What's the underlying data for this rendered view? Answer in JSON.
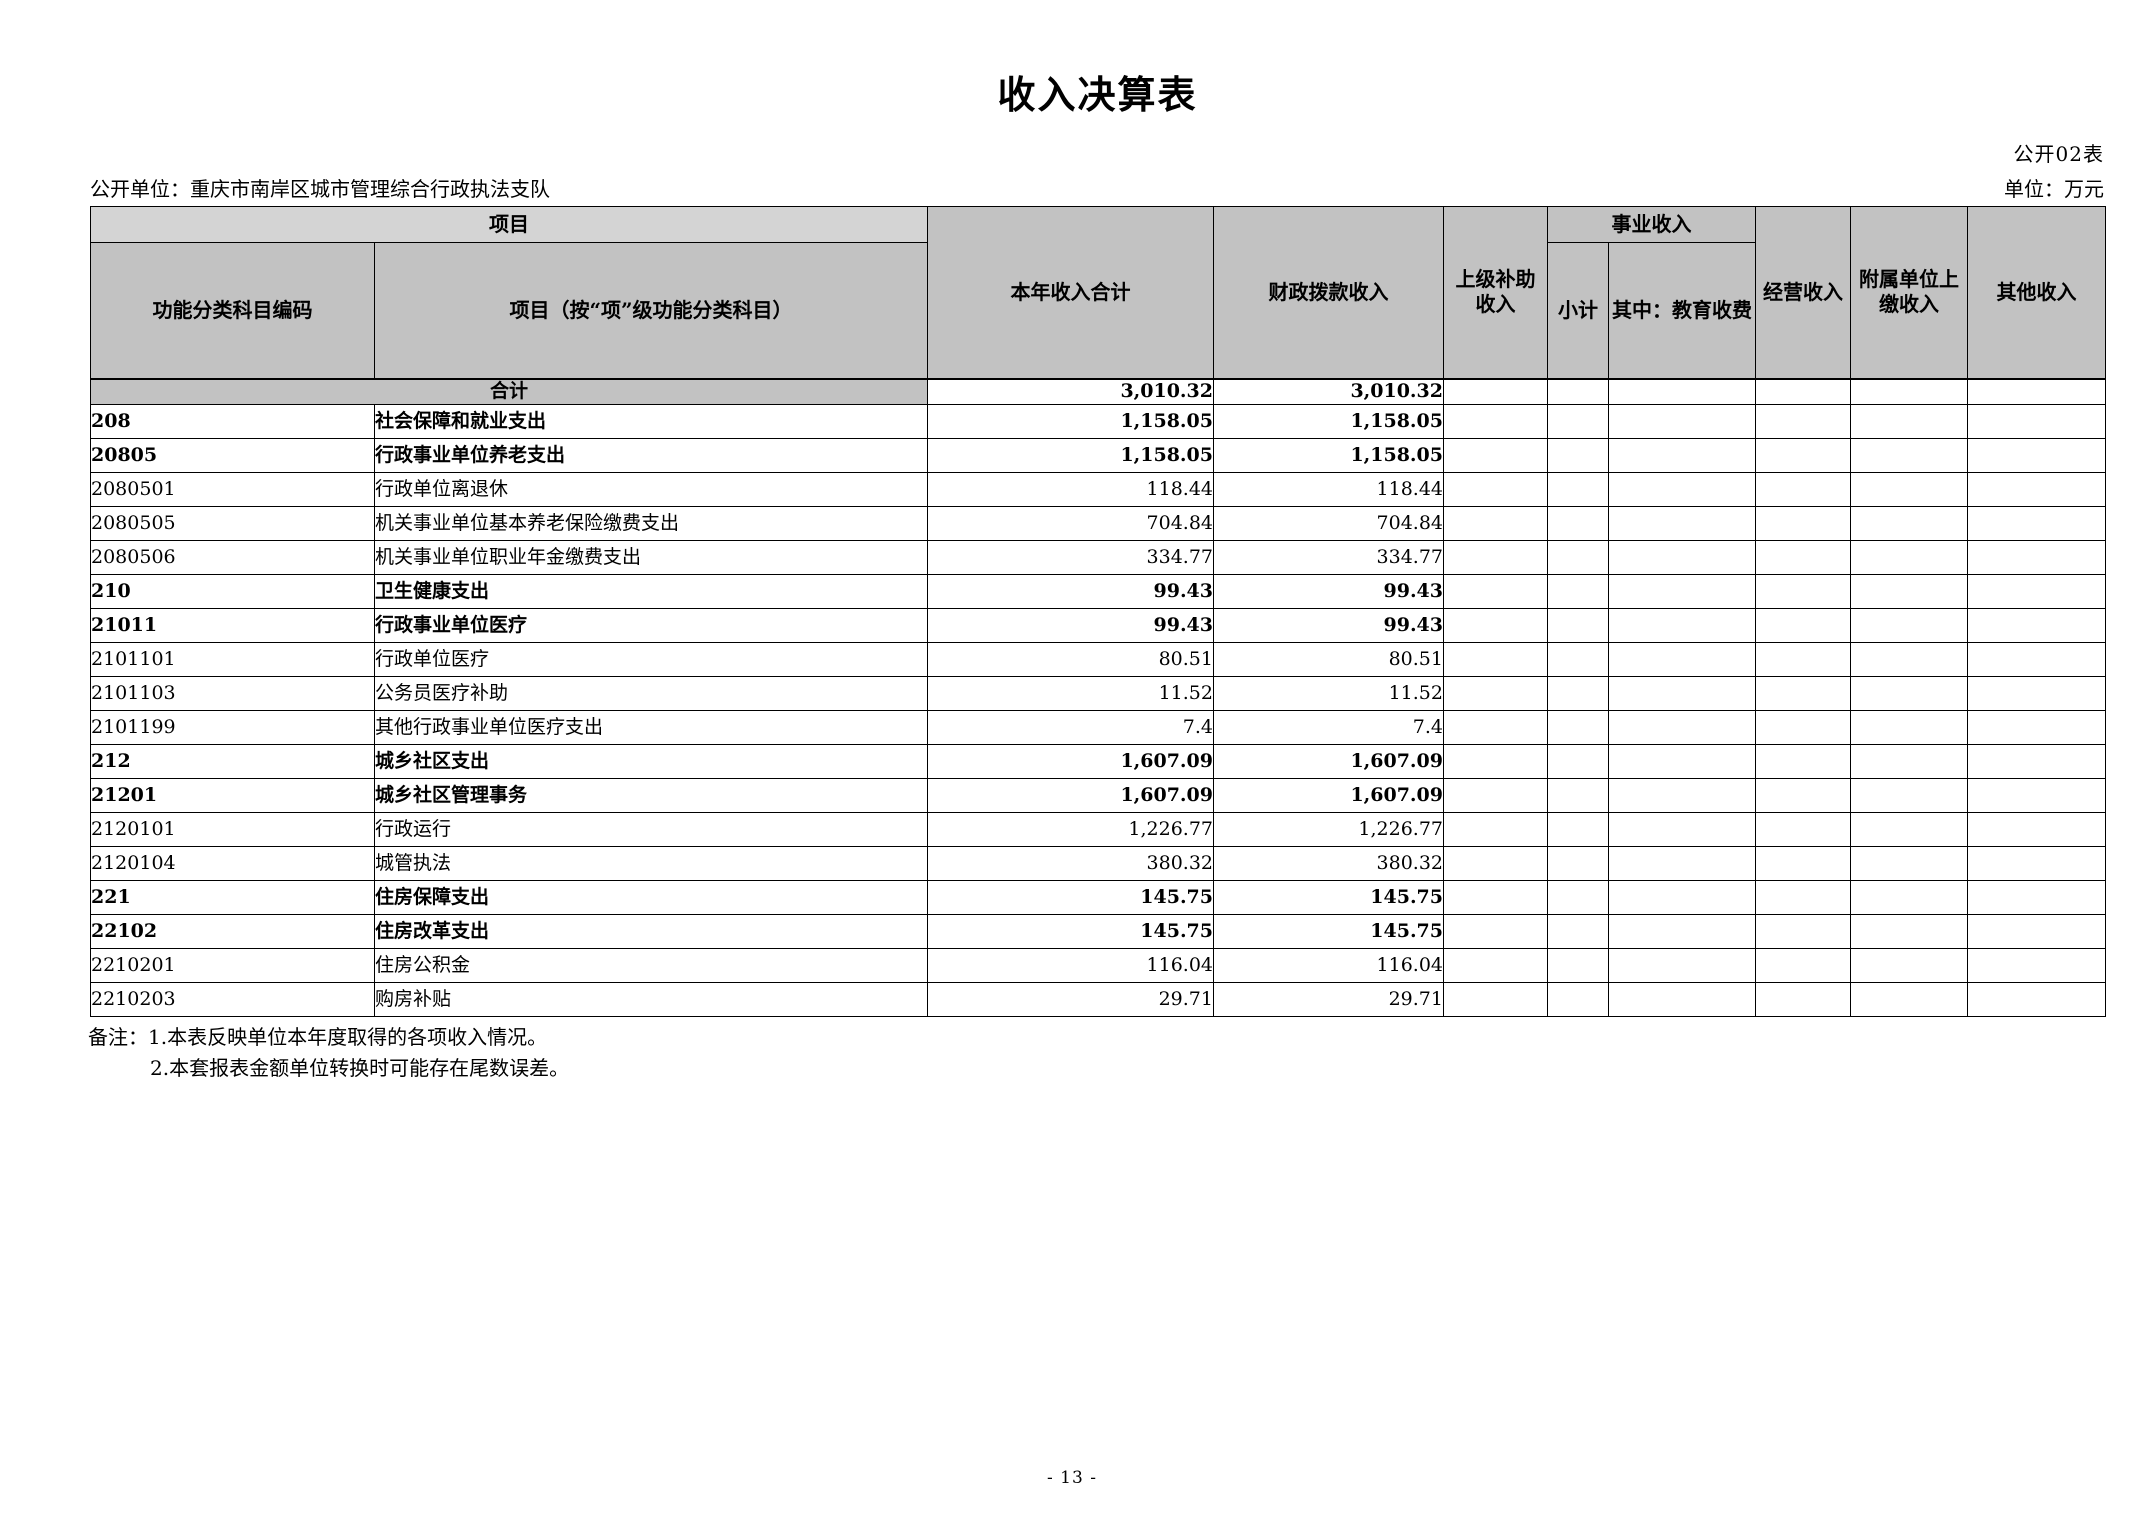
{
  "page": {
    "title": "收入决算表",
    "table_code": "公开02表",
    "org_label": "公开单位：重庆市南岸区城市管理综合行政执法支队",
    "unit_label": "单位：万元",
    "notes": [
      "备注：1.本表反映单位本年度取得的各项收入情况。",
      "2.本套报表金额单位转换时可能存在尾数误差。"
    ],
    "page_number": "- 13 -"
  },
  "colors": {
    "header_bg": "#c2c2c2",
    "band_bg": "#d4d4d4",
    "total_bg": "#c2c2c2",
    "border": "#000000"
  },
  "table": {
    "headers": {
      "project_group": "项目",
      "code": "功能分类科目编码",
      "project": "项目（按“项”级功能分类科目）",
      "total": "本年收入合计",
      "fiscal": "财政拨款收入",
      "superior": "上级补助收入",
      "business_group": "事业收入",
      "business_subtotal": "小计",
      "business_edu": "其中：教育收费",
      "operating": "经营收入",
      "affiliated": "附属单位上缴收入",
      "other": "其他收入"
    },
    "total_row_label": "合计",
    "rows": [
      {
        "is_total": true,
        "code": "",
        "name": "合计",
        "total": "3,010.32",
        "fiscal": "3,010.32",
        "bold": true
      },
      {
        "code": "208",
        "name": "社会保障和就业支出",
        "total": "1,158.05",
        "fiscal": "1,158.05",
        "bold": true
      },
      {
        "code": "20805",
        "name": "行政事业单位养老支出",
        "total": "1,158.05",
        "fiscal": "1,158.05",
        "bold": true
      },
      {
        "code": "2080501",
        "name": "行政单位离退休",
        "total": "118.44",
        "fiscal": "118.44",
        "bold": false
      },
      {
        "code": "2080505",
        "name": "机关事业单位基本养老保险缴费支出",
        "total": "704.84",
        "fiscal": "704.84",
        "bold": false
      },
      {
        "code": "2080506",
        "name": "机关事业单位职业年金缴费支出",
        "total": "334.77",
        "fiscal": "334.77",
        "bold": false
      },
      {
        "code": "210",
        "name": "卫生健康支出",
        "total": "99.43",
        "fiscal": "99.43",
        "bold": true
      },
      {
        "code": "21011",
        "name": "行政事业单位医疗",
        "total": "99.43",
        "fiscal": "99.43",
        "bold": true
      },
      {
        "code": "2101101",
        "name": "行政单位医疗",
        "total": "80.51",
        "fiscal": "80.51",
        "bold": false
      },
      {
        "code": "2101103",
        "name": "公务员医疗补助",
        "total": "11.52",
        "fiscal": "11.52",
        "bold": false
      },
      {
        "code": "2101199",
        "name": "其他行政事业单位医疗支出",
        "total": "7.4",
        "fiscal": "7.4",
        "bold": false
      },
      {
        "code": "212",
        "name": "城乡社区支出",
        "total": "1,607.09",
        "fiscal": "1,607.09",
        "bold": true
      },
      {
        "code": "21201",
        "name": "城乡社区管理事务",
        "total": "1,607.09",
        "fiscal": "1,607.09",
        "bold": true
      },
      {
        "code": "2120101",
        "name": "行政运行",
        "total": "1,226.77",
        "fiscal": "1,226.77",
        "bold": false
      },
      {
        "code": "2120104",
        "name": "城管执法",
        "total": "380.32",
        "fiscal": "380.32",
        "bold": false
      },
      {
        "code": "221",
        "name": "住房保障支出",
        "total": "145.75",
        "fiscal": "145.75",
        "bold": true
      },
      {
        "code": "22102",
        "name": "住房改革支出",
        "total": "145.75",
        "fiscal": "145.75",
        "bold": true
      },
      {
        "code": "2210201",
        "name": "住房公积金",
        "total": "116.04",
        "fiscal": "116.04",
        "bold": false
      },
      {
        "code": "2210203",
        "name": "购房补贴",
        "total": "29.71",
        "fiscal": "29.71",
        "bold": false
      }
    ]
  }
}
